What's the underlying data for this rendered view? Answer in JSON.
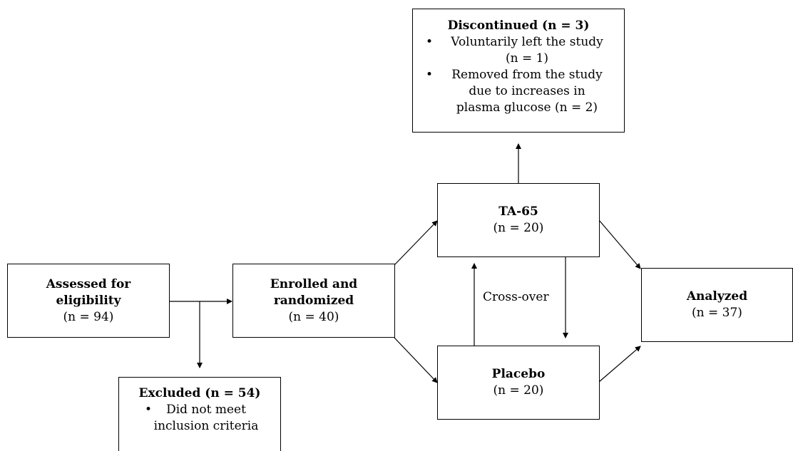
{
  "nodes": {
    "assessed": {
      "title": "Assessed for eligibility",
      "title_line1": "Assessed for",
      "title_line2": "eligibility",
      "count": "(n = 94)"
    },
    "enrolled": {
      "title": "Enrolled and randomized",
      "title_line1": "Enrolled and",
      "title_line2": "randomized",
      "count": "(n = 40)"
    },
    "ta65": {
      "title": "TA-65",
      "count": "(n = 20)"
    },
    "placebo": {
      "title": "Placebo",
      "count": "(n = 20)"
    },
    "analyzed": {
      "title": "Analyzed",
      "count": "(n = 37)"
    },
    "discontinued": {
      "title": "Discontinued (n = 3)",
      "reason1_line1": "Voluntarily left the study",
      "reason1_line2": "(n = 1)",
      "reason2_line1": "Removed from the study",
      "reason2_line2": "due to increases in",
      "reason2_line3": "plasma glucose (n = 2)"
    },
    "excluded": {
      "title": "Excluded (n = 54)",
      "reason1_line1": "Did not meet",
      "reason1_line2": "inclusion criteria"
    }
  },
  "edges": {
    "crossover_label": "Cross-over"
  },
  "bullet_glyph": "•"
}
